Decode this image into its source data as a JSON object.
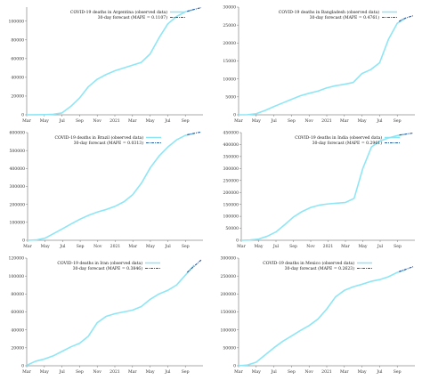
{
  "chart_data": [
    {
      "type": "line",
      "country": "Argentina",
      "legend": [
        "COVID-19 deaths in Argentina (observed data)",
        "30-day forecast (MAPE = 0.1107)"
      ],
      "legend_placement": "top-right",
      "x_ticks": [
        "Mar",
        "May",
        "Jul",
        "Sep",
        "Nov",
        "2021",
        "Mar",
        "May",
        "Jul",
        "Sep"
      ],
      "y_ticks": [
        0,
        20000,
        40000,
        60000,
        80000,
        100000
      ],
      "ylim": [
        0,
        115000
      ],
      "x_months": [
        0,
        1,
        2,
        3,
        4,
        5,
        6,
        7,
        8,
        9,
        10,
        11,
        12,
        13,
        14,
        15,
        16,
        17,
        18,
        19
      ],
      "observed": [
        0,
        50,
        200,
        500,
        2000,
        9000,
        18000,
        30000,
        38000,
        43000,
        47000,
        50000,
        53000,
        56000,
        65000,
        82000,
        97000,
        105000,
        110000,
        112500
      ],
      "forecast_x": [
        18.2,
        18.6,
        19,
        19.4,
        19.8
      ],
      "forecast": [
        110500,
        111500,
        112600,
        113500,
        114500
      ],
      "colors": {
        "observed": "#8ee6f5",
        "forecast": "#2c5aa0"
      }
    },
    {
      "type": "line",
      "country": "Bangladesh",
      "legend": [
        "COVID-19 deaths in Bangladesh (observed data)",
        "30-day forecast (MAPE = 0.4761)"
      ],
      "legend_placement": "top-right",
      "x_ticks": [
        "Mar",
        "May",
        "Jul",
        "Sep",
        "Nov",
        "2021",
        "Mar",
        "May",
        "Jul",
        "Sep"
      ],
      "y_ticks": [
        0,
        5000,
        10000,
        15000,
        20000,
        25000,
        30000
      ],
      "ylim": [
        0,
        30000
      ],
      "x_months": [
        0,
        1,
        2,
        3,
        4,
        5,
        6,
        7,
        8,
        9,
        10,
        11,
        12,
        13,
        14,
        15,
        16,
        17,
        18,
        19
      ],
      "observed": [
        0,
        30,
        300,
        1200,
        2300,
        3300,
        4300,
        5300,
        6000,
        6600,
        7500,
        8100,
        8500,
        9000,
        11500,
        12600,
        14500,
        21000,
        25500,
        27000
      ],
      "forecast_x": [
        18.2,
        18.6,
        19,
        19.4,
        19.8
      ],
      "forecast": [
        26000,
        26600,
        27000,
        27300,
        27600
      ],
      "colors": {
        "observed": "#8ee6f5",
        "forecast": "#2c5aa0"
      }
    },
    {
      "type": "line",
      "country": "Brazil",
      "legend": [
        "COVID-19 deaths in Brazil (observed data)",
        "30-day forecast (MAPE = 0.0313)"
      ],
      "legend_placement": "top-left",
      "x_ticks": [
        "Mar",
        "May",
        "Jul",
        "Sep",
        "Nov",
        "2021",
        "Mar",
        "May",
        "Jul",
        "Sep"
      ],
      "y_ticks": [
        0,
        100000,
        200000,
        300000,
        400000,
        500000,
        600000
      ],
      "ylim": [
        0,
        600000
      ],
      "x_months": [
        0,
        1,
        2,
        3,
        4,
        5,
        6,
        7,
        8,
        9,
        10,
        11,
        12,
        13,
        14,
        15,
        16,
        17,
        18,
        19
      ],
      "observed": [
        0,
        2000,
        12000,
        38000,
        65000,
        92000,
        118000,
        140000,
        158000,
        172000,
        190000,
        215000,
        255000,
        320000,
        405000,
        470000,
        520000,
        560000,
        585000,
        595000
      ],
      "forecast_x": [
        18.2,
        18.6,
        19,
        19.4,
        19.8
      ],
      "forecast": [
        588000,
        592000,
        596000,
        600000,
        603000
      ],
      "colors": {
        "observed": "#8ee6f5",
        "forecast": "#2c5aa0"
      }
    },
    {
      "type": "line",
      "country": "India",
      "legend": [
        "COVID-19 deaths in India (observed data)",
        "30-day forecast (MAPE = 0.2961)"
      ],
      "legend_placement": "top-right",
      "x_ticks": [
        "Mar",
        "May",
        "Jul",
        "Sep",
        "Nov",
        "2021",
        "Mar",
        "May",
        "Jul",
        "Sep"
      ],
      "y_ticks": [
        0,
        50000,
        100000,
        150000,
        200000,
        250000,
        300000,
        350000,
        400000,
        450000
      ],
      "ylim": [
        0,
        450000
      ],
      "x_months": [
        0,
        1,
        2,
        3,
        4,
        5,
        6,
        7,
        8,
        9,
        10,
        11,
        12,
        13,
        14,
        15,
        16,
        17,
        18,
        19
      ],
      "observed": [
        0,
        1000,
        5000,
        17000,
        35000,
        65000,
        97000,
        120000,
        137000,
        147000,
        152000,
        155000,
        158000,
        175000,
        300000,
        390000,
        415000,
        428000,
        438000,
        443000
      ],
      "forecast_x": [
        18.2,
        18.6,
        19,
        19.4,
        19.8
      ],
      "forecast": [
        440000,
        442000,
        444000,
        446000,
        448000
      ],
      "colors": {
        "observed": "#8ee6f5",
        "forecast": "#2c5aa0"
      }
    },
    {
      "type": "line",
      "country": "Iran",
      "legend": [
        "COVID-19 deaths in Iran (observed data)",
        "30-day forecast (MAPE = 0.3846)"
      ],
      "legend_placement": "top-left",
      "x_ticks": [
        "Mar",
        "May",
        "Jul",
        "Sep",
        "Nov",
        "2021",
        "Mar",
        "May",
        "Jul",
        "Sep"
      ],
      "y_ticks": [
        0,
        20000,
        40000,
        60000,
        80000,
        100000,
        120000
      ],
      "ylim": [
        0,
        120000
      ],
      "x_months": [
        0,
        1,
        2,
        3,
        4,
        5,
        6,
        7,
        8,
        9,
        10,
        11,
        12,
        13,
        14,
        15,
        16,
        17,
        18,
        19
      ],
      "observed": [
        500,
        5000,
        7500,
        11000,
        16000,
        21000,
        25000,
        33000,
        48000,
        55000,
        58000,
        60000,
        62000,
        66000,
        74000,
        80000,
        84000,
        90000,
        101000,
        112000
      ],
      "forecast_x": [
        18.2,
        18.6,
        19,
        19.4,
        19.8
      ],
      "forecast": [
        104000,
        107500,
        111000,
        114500,
        118000
      ],
      "colors": {
        "observed": "#8ee6f5",
        "forecast": "#2c5aa0"
      }
    },
    {
      "type": "line",
      "country": "Mexico",
      "legend": [
        "COVID-19 deaths in Mexico (observed data)",
        "30-day forecast (MAPE = 0.2623)"
      ],
      "legend_placement": "top-left",
      "x_ticks": [
        "Mar",
        "May",
        "Jul",
        "Sep",
        "Nov",
        "2021",
        "Mar",
        "May",
        "Jul",
        "Sep"
      ],
      "y_ticks": [
        0,
        50000,
        100000,
        150000,
        200000,
        250000,
        300000
      ],
      "ylim": [
        0,
        300000
      ],
      "x_months": [
        0,
        1,
        2,
        3,
        4,
        5,
        6,
        7,
        8,
        9,
        10,
        11,
        12,
        13,
        14,
        15,
        16,
        17,
        18,
        19
      ],
      "observed": [
        0,
        2000,
        10000,
        30000,
        50000,
        68000,
        83000,
        98000,
        112000,
        130000,
        158000,
        192000,
        210000,
        220000,
        227000,
        235000,
        240000,
        248000,
        260000,
        268000
      ],
      "forecast_x": [
        18.2,
        18.6,
        19,
        19.4,
        19.8
      ],
      "forecast": [
        262000,
        265500,
        269000,
        272500,
        276000
      ],
      "colors": {
        "observed": "#8ee6f5",
        "forecast": "#2c5aa0"
      }
    }
  ]
}
